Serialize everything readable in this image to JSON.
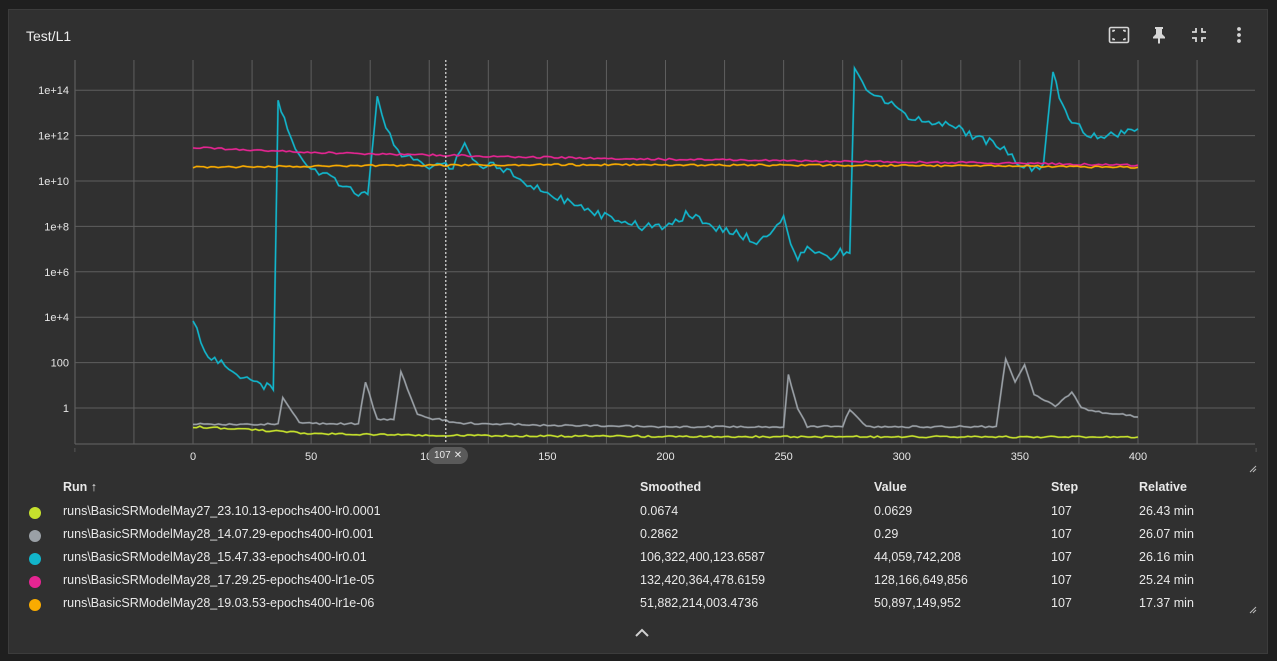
{
  "card": {
    "title": "Test/L1",
    "toolbar": [
      {
        "icon": "fit-domain-icon"
      },
      {
        "icon": "pin-icon"
      },
      {
        "icon": "collapse-icon"
      },
      {
        "icon": "more-vert-icon"
      }
    ]
  },
  "chart_data": {
    "type": "line",
    "title": "Test/L1",
    "xlabel": "",
    "ylabel": "",
    "y_scale": "log",
    "xlim": [
      0,
      400
    ],
    "x_ticks": [
      "0",
      "50",
      "100",
      "150",
      "200",
      "250",
      "300",
      "350",
      "400"
    ],
    "y_ticks": [
      "1",
      "100",
      "1e+4",
      "1e+6",
      "1e+8",
      "1e+10",
      "1e+12",
      "1e+14"
    ],
    "grid": true,
    "hover_step": 107,
    "hover_label": "107",
    "series": [
      {
        "color": "#c6e12d",
        "x": [
          0,
          25,
          50,
          75,
          100,
          125,
          150,
          175,
          200,
          225,
          250,
          275,
          300,
          325,
          350,
          375,
          400
        ],
        "y": [
          0.15,
          0.11,
          0.075,
          0.068,
          0.063,
          0.06,
          0.058,
          0.057,
          0.056,
          0.055,
          0.055,
          0.054,
          0.054,
          0.054,
          0.053,
          0.053,
          0.053
        ]
      },
      {
        "color": "#9aa0a6",
        "x": [
          0,
          20,
          36,
          38,
          45,
          55,
          70,
          73,
          78,
          85,
          88,
          95,
          100,
          107,
          110,
          130,
          150,
          200,
          250,
          252,
          256,
          260,
          270,
          275,
          278,
          285,
          290,
          300,
          320,
          340,
          344,
          348,
          352,
          356,
          365,
          372,
          376,
          385,
          395,
          400
        ],
        "y": [
          0.2,
          0.18,
          0.2,
          3,
          0.22,
          0.2,
          0.2,
          15,
          0.3,
          0.3,
          40,
          0.5,
          0.35,
          0.29,
          0.22,
          0.2,
          0.17,
          0.15,
          0.15,
          30,
          1,
          0.15,
          0.15,
          0.15,
          0.9,
          0.15,
          0.15,
          0.15,
          0.15,
          0.15,
          150,
          15,
          80,
          4,
          1.2,
          5,
          1,
          0.6,
          0.5,
          0.4
        ]
      },
      {
        "color": "#12b5cb",
        "x": [
          0,
          5,
          12,
          20,
          30,
          34,
          36,
          40,
          45,
          50,
          55,
          60,
          65,
          70,
          74,
          78,
          80,
          85,
          90,
          95,
          100,
          105,
          107,
          110,
          115,
          120,
          130,
          140,
          150,
          160,
          170,
          180,
          190,
          200,
          210,
          220,
          230,
          240,
          250,
          253,
          256,
          260,
          265,
          270,
          274,
          278,
          280,
          285,
          290,
          300,
          310,
          320,
          330,
          340,
          345,
          350,
          355,
          360,
          364,
          368,
          372,
          380,
          390,
          400
        ],
        "y": [
          10000,
          300,
          100,
          20,
          10,
          8,
          30000000000000.0,
          2000000000000.0,
          100000000000.0,
          30000000000.0,
          20000000000.0,
          10000000000.0,
          5000000000.0,
          2000000000.0,
          3000000000.0,
          50000000000000.0,
          10000000000000.0,
          300000000000.0,
          100000000000.0,
          80000000000.0,
          50000000000.0,
          40000000000.0,
          44000000000.0,
          50000000000.0,
          500000000000.0,
          60000000000.0,
          40000000000.0,
          10000000000.0,
          3000000000.0,
          1000000000.0,
          400000000.0,
          200000000.0,
          100000000.0,
          80000000.0,
          400000000.0,
          100000000.0,
          50000000.0,
          20000000.0,
          300000000.0,
          20000000.0,
          4000000.0,
          10000000.0,
          8000000.0,
          3000000.0,
          10000000.0,
          5000000.0,
          800000000000000.0,
          100000000000000.0,
          60000000000000.0,
          10000000000000.0,
          4000000000000.0,
          3000000000000.0,
          1000000000000.0,
          400000000000.0,
          200000000000.0,
          60000000000.0,
          40000000000.0,
          50000000000.0,
          500000000000000.0,
          20000000000000.0,
          5000000000000.0,
          1000000000000.0,
          1000000000000.0,
          2000000000000.0
        ]
      },
      {
        "color": "#e52592",
        "x": [
          0,
          50,
          100,
          150,
          200,
          250,
          300,
          350,
          400
        ],
        "y": [
          300000000000.0,
          180000000000.0,
          140000000000.0,
          110000000000.0,
          90000000000.0,
          80000000000.0,
          70000000000.0,
          60000000000.0,
          50000000000.0
        ]
      },
      {
        "color": "#f9ab00",
        "x": [
          0,
          50,
          100,
          150,
          200,
          250,
          300,
          350,
          400
        ],
        "y": [
          40000000000.0,
          45000000000.0,
          50000000000.0,
          52000000000.0,
          51000000000.0,
          50000000000.0,
          48000000000.0,
          45000000000.0,
          40000000000.0
        ]
      }
    ]
  },
  "table": {
    "headers": {
      "run": "Run ↑",
      "smoothed": "Smoothed",
      "value": "Value",
      "step": "Step",
      "relative": "Relative"
    },
    "rows": [
      {
        "color": "#c6e12d",
        "run": "runs\\BasicSRModelMay27_23.10.13-epochs400-lr0.0001",
        "smoothed": "0.0674",
        "value": "0.0629",
        "step": "107",
        "relative": "26.43 min"
      },
      {
        "color": "#9aa0a6",
        "run": "runs\\BasicSRModelMay28_14.07.29-epochs400-lr0.001",
        "smoothed": "0.2862",
        "value": "0.29",
        "step": "107",
        "relative": "26.07 min"
      },
      {
        "color": "#12b5cb",
        "run": "runs\\BasicSRModelMay28_15.47.33-epochs400-lr0.01",
        "smoothed": "106,322,400,123.6587",
        "value": "44,059,742,208",
        "step": "107",
        "relative": "26.16 min"
      },
      {
        "color": "#e52592",
        "run": "runs\\BasicSRModelMay28_17.29.25-epochs400-lr1e-05",
        "smoothed": "132,420,364,478.6159",
        "value": "128,166,649,856",
        "step": "107",
        "relative": "25.24 min"
      },
      {
        "color": "#f9ab00",
        "run": "runs\\BasicSRModelMay28_19.03.53-epochs400-lr1e-06",
        "smoothed": "51,882,214,003.4736",
        "value": "50,897,149,952",
        "step": "107",
        "relative": "17.37 min"
      }
    ]
  }
}
